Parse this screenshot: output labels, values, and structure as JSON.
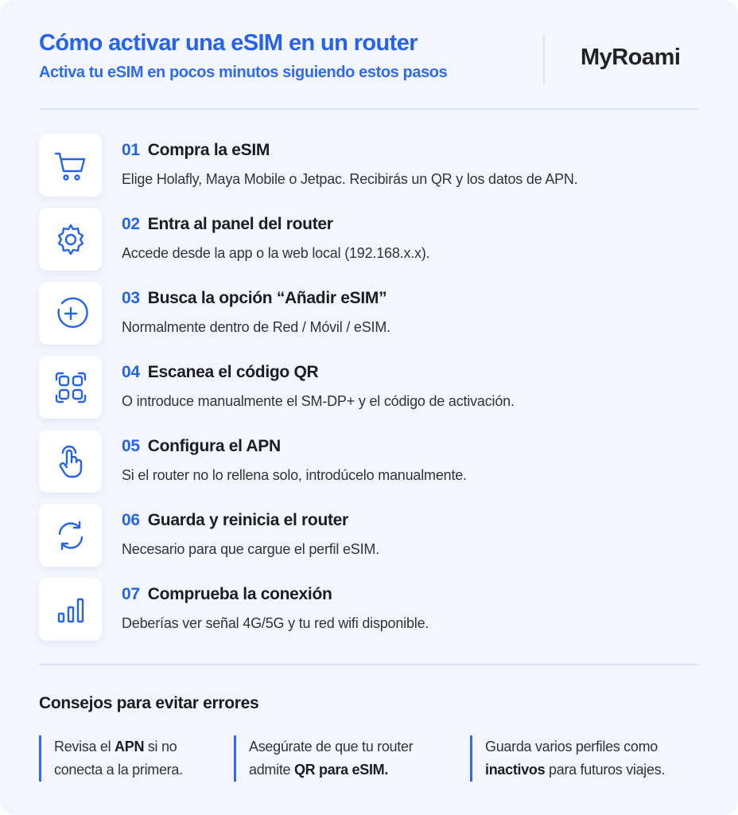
{
  "header": {
    "title": "Cómo activar una eSIM en un router",
    "subtitle": "Activa tu eSIM en pocos minutos siguiendo estos pasos",
    "logo": "MyRoami"
  },
  "accent_color": "#2563eb",
  "steps": [
    {
      "num": "01",
      "title": "Compra la eSIM",
      "desc": "Elige Holafly, Maya Mobile o Jetpac. Recibirás un QR y los datos de APN.",
      "icon": "cart-icon"
    },
    {
      "num": "02",
      "title": "Entra al panel del router",
      "desc": "Accede desde la app o la web local (192.168.x.x).",
      "icon": "gear-icon"
    },
    {
      "num": "03",
      "title": "Busca la opción “Añadir eSIM”",
      "desc": "Normalmente dentro de Red / Móvil / eSIM.",
      "icon": "plus-circle-icon"
    },
    {
      "num": "04",
      "title": "Escanea el código QR",
      "desc": "O introduce manualmente el SM-DP+ y el código de activación.",
      "icon": "qr-icon"
    },
    {
      "num": "05",
      "title": "Configura el APN",
      "desc": "Si el router no lo rellena solo, introdúcelo manualmente.",
      "icon": "hand-pointer-icon"
    },
    {
      "num": "06",
      "title": "Guarda y reinicia el router",
      "desc": "Necesario para que cargue el perfil eSIM.",
      "icon": "refresh-icon"
    },
    {
      "num": "07",
      "title": "Comprueba la conexión",
      "desc": "Deberías ver señal 4G/5G y tu red wifi disponible.",
      "icon": "signal-bars-icon"
    }
  ],
  "tips": {
    "heading": "Consejos para evitar errores",
    "items": [
      {
        "a": "Revisa el ",
        "b": "APN",
        "c": " si no",
        "d": "conecta a la primera.",
        "e": "",
        "f": ""
      },
      {
        "a": "Asegúrate de que tu router",
        "b": "",
        "c": "",
        "d": "admite ",
        "e": "QR para eSIM.",
        "f": ""
      },
      {
        "a": "Guarda varios perfiles como",
        "b": "",
        "c": "",
        "d": "",
        "e": "inactivos",
        "f": " para futuros viajes."
      }
    ]
  }
}
